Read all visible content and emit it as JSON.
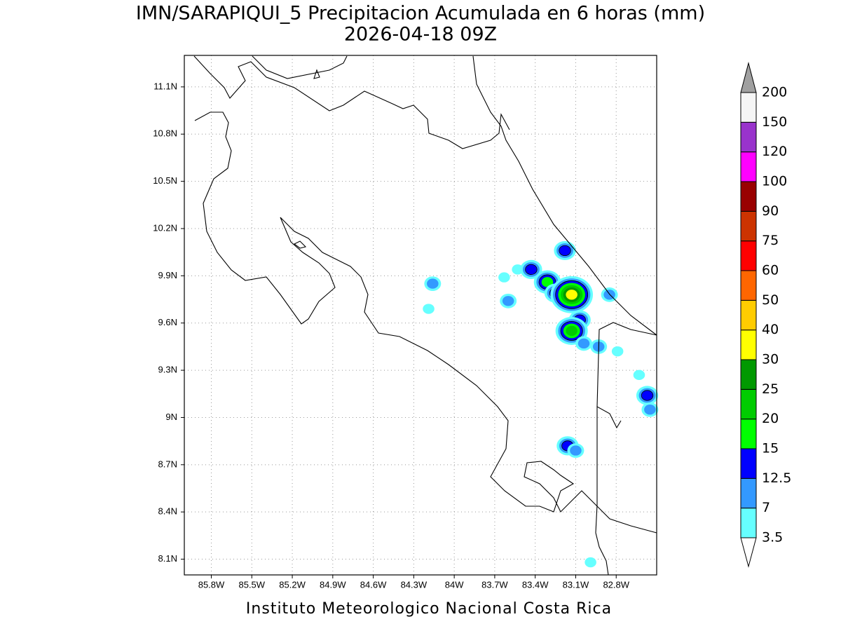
{
  "title": "IMN/SARAPIQUI_5 Precipitacion Acumulada en 6 horas (mm)",
  "subtitle": "2026-04-18 09Z",
  "footer": "Instituto Meteorologico Nacional Costa Rica",
  "map": {
    "xlim": [
      -86.0,
      -82.5
    ],
    "ylim": [
      8.0,
      11.3
    ],
    "grid": true,
    "xticks": [
      {
        "value": -85.8,
        "label": "85.8W"
      },
      {
        "value": -85.5,
        "label": "85.5W"
      },
      {
        "value": -85.2,
        "label": "85.2W"
      },
      {
        "value": -84.9,
        "label": "84.9W"
      },
      {
        "value": -84.6,
        "label": "84.6W"
      },
      {
        "value": -84.3,
        "label": "84.3W"
      },
      {
        "value": -84.0,
        "label": "84W"
      },
      {
        "value": -83.7,
        "label": "83.7W"
      },
      {
        "value": -83.4,
        "label": "83.4W"
      },
      {
        "value": -83.1,
        "label": "83.1W"
      },
      {
        "value": -82.8,
        "label": "82.8W"
      }
    ],
    "yticks": [
      {
        "value": 11.1,
        "label": "11.1N"
      },
      {
        "value": 10.8,
        "label": "10.8N"
      },
      {
        "value": 10.5,
        "label": "10.5N"
      },
      {
        "value": 10.2,
        "label": "10.2N"
      },
      {
        "value": 9.9,
        "label": "9.9N"
      },
      {
        "value": 9.6,
        "label": "9.6N"
      },
      {
        "value": 9.3,
        "label": "9.3N"
      },
      {
        "value": 9.0,
        "label": "9N"
      },
      {
        "value": 8.7,
        "label": "8.7N"
      },
      {
        "value": 8.4,
        "label": "8.4N"
      },
      {
        "value": 8.1,
        "label": "8.1N"
      }
    ]
  },
  "precip": {
    "cells": [
      {
        "lon": -84.16,
        "lat": 9.85,
        "value": 10
      },
      {
        "lon": -84.19,
        "lat": 9.69,
        "value": 5
      },
      {
        "lon": -83.53,
        "lat": 9.94,
        "value": 5
      },
      {
        "lon": -83.43,
        "lat": 9.94,
        "value": 12.5
      },
      {
        "lon": -83.6,
        "lat": 9.74,
        "value": 10
      },
      {
        "lon": -83.63,
        "lat": 9.89,
        "value": 5
      },
      {
        "lon": -83.31,
        "lat": 9.86,
        "value": 15
      },
      {
        "lon": -83.25,
        "lat": 9.79,
        "value": 13
      },
      {
        "lon": -83.13,
        "lat": 9.78,
        "value": 32
      },
      {
        "lon": -83.18,
        "lat": 10.06,
        "value": 13
      },
      {
        "lon": -83.07,
        "lat": 9.62,
        "value": 14
      },
      {
        "lon": -83.13,
        "lat": 9.55,
        "value": 22
      },
      {
        "lon": -83.04,
        "lat": 9.47,
        "value": 10
      },
      {
        "lon": -82.85,
        "lat": 9.78,
        "value": 12
      },
      {
        "lon": -82.93,
        "lat": 9.45,
        "value": 8
      },
      {
        "lon": -82.79,
        "lat": 9.42,
        "value": 6
      },
      {
        "lon": -82.63,
        "lat": 9.27,
        "value": 5
      },
      {
        "lon": -82.57,
        "lat": 9.14,
        "value": 13
      },
      {
        "lon": -82.55,
        "lat": 9.05,
        "value": 8
      },
      {
        "lon": -83.16,
        "lat": 8.82,
        "value": 14
      },
      {
        "lon": -83.1,
        "lat": 8.79,
        "value": 10
      },
      {
        "lon": -82.99,
        "lat": 8.08,
        "value": 4
      }
    ]
  },
  "colorbar": {
    "levels": [
      3.5,
      7,
      12.5,
      15,
      20,
      25,
      30,
      40,
      50,
      60,
      75,
      90,
      100,
      120,
      150,
      200
    ],
    "colors": [
      "#66ffff",
      "#3399ff",
      "#0000ff",
      "#00ff00",
      "#00cc00",
      "#009900",
      "#ffff00",
      "#ffcc00",
      "#ff6600",
      "#ff0000",
      "#cc3300",
      "#990000",
      "#ff00ff",
      "#9933cc",
      "#f5f5f5"
    ],
    "under_color": "#ffffff",
    "over_color": "#a0a0a0"
  }
}
